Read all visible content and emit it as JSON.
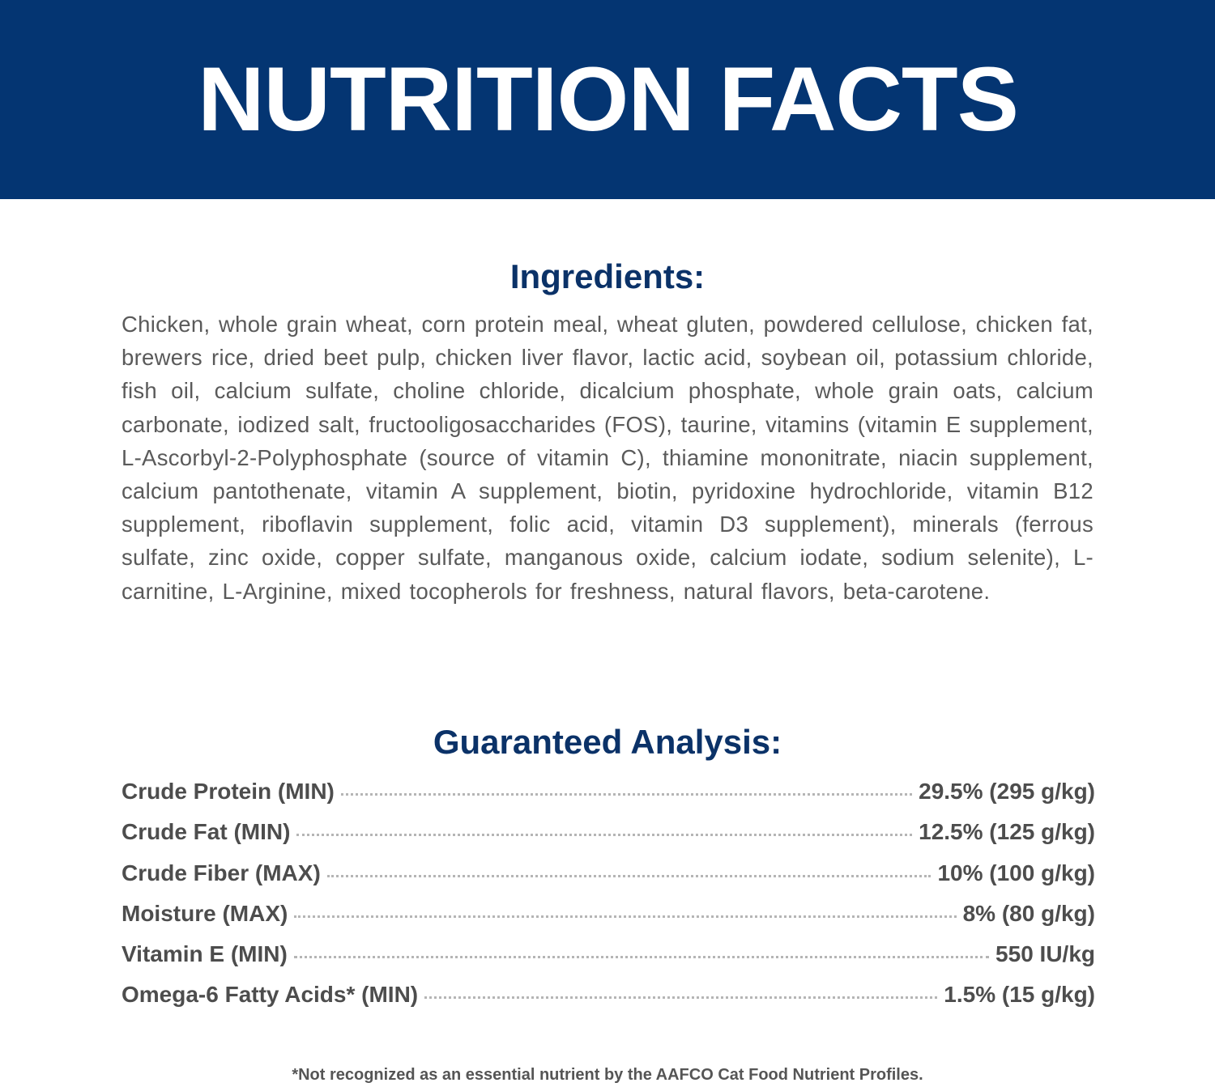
{
  "header": {
    "title": "NUTRITION FACTS",
    "background_color": "#043572"
  },
  "ingredients": {
    "title": "Ingredients:",
    "text": "Chicken, whole grain wheat, corn protein meal, wheat gluten, powdered cellulose, chicken fat, brewers rice, dried beet pulp, chicken liver flavor, lactic acid, soybean oil, potassium chloride, fish oil, calcium sulfate, choline chloride, dicalcium phosphate, whole grain oats, calcium carbonate, iodized salt, fructooligosaccharides (FOS), taurine, vitamins (vitamin E supplement, L-Ascorbyl-2-Polyphosphate (source of vitamin C), thiamine mononitrate, niacin supplement, calcium pantothenate, vitamin A supplement, biotin, pyridoxine hydrochloride, vitamin B12 supplement, riboflavin supplement, folic acid, vitamin D3 supplement), minerals (ferrous sulfate, zinc oxide, copper sulfate, manganous oxide, calcium iodate, sodium selenite), L-carnitine, L-Arginine, mixed tocopherols for freshness, natural flavors, beta-carotene."
  },
  "analysis": {
    "title": "Guaranteed Analysis:",
    "rows": [
      {
        "label": "Crude Protein (MIN)",
        "value": "29.5% (295 g/kg)"
      },
      {
        "label": "Crude Fat (MIN)",
        "value": "12.5% (125 g/kg)"
      },
      {
        "label": "Crude Fiber (MAX)",
        "value": "10% (100 g/kg)"
      },
      {
        "label": "Moisture (MAX)",
        "value": "8% (80 g/kg)"
      },
      {
        "label": "Vitamin E (MIN)",
        "value": "550 IU/kg"
      },
      {
        "label": "Omega-6 Fatty Acids* (MIN)",
        "value": "1.5% (15 g/kg)"
      }
    ]
  },
  "footnote": "*Not recognized as an essential nutrient by the AAFCO Cat Food Nutrient Profiles."
}
